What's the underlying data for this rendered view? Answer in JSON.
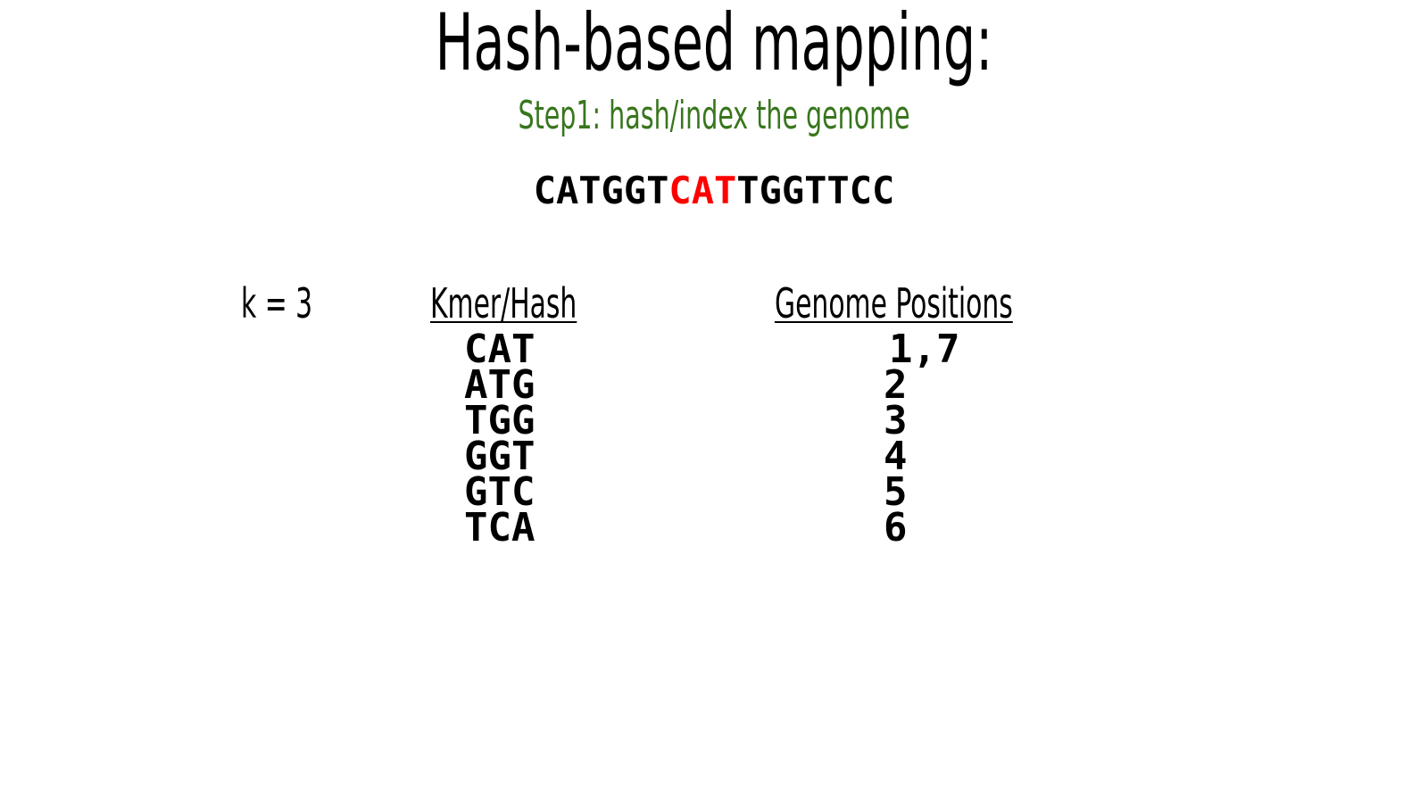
{
  "slide": {
    "title": "Hash-based mapping:",
    "subtitle": "Step1: hash/index the genome",
    "subtitle_color": "#38761d",
    "genome": {
      "prefix": "CATGGT",
      "highlight": "CAT",
      "suffix": "TGGTTCC",
      "highlight_color": "#ff0000"
    },
    "k_label": "k = 3",
    "headers": {
      "kmer": "Kmer/Hash",
      "positions": "Genome Positions"
    },
    "rows": [
      {
        "kmer": "CAT",
        "positions": "1,7"
      },
      {
        "kmer": "ATG",
        "positions": "2"
      },
      {
        "kmer": "TGG",
        "positions": "3"
      },
      {
        "kmer": "GGT",
        "positions": "4"
      },
      {
        "kmer": "GTC",
        "positions": "5"
      },
      {
        "kmer": "TCA",
        "positions": "6"
      }
    ]
  }
}
